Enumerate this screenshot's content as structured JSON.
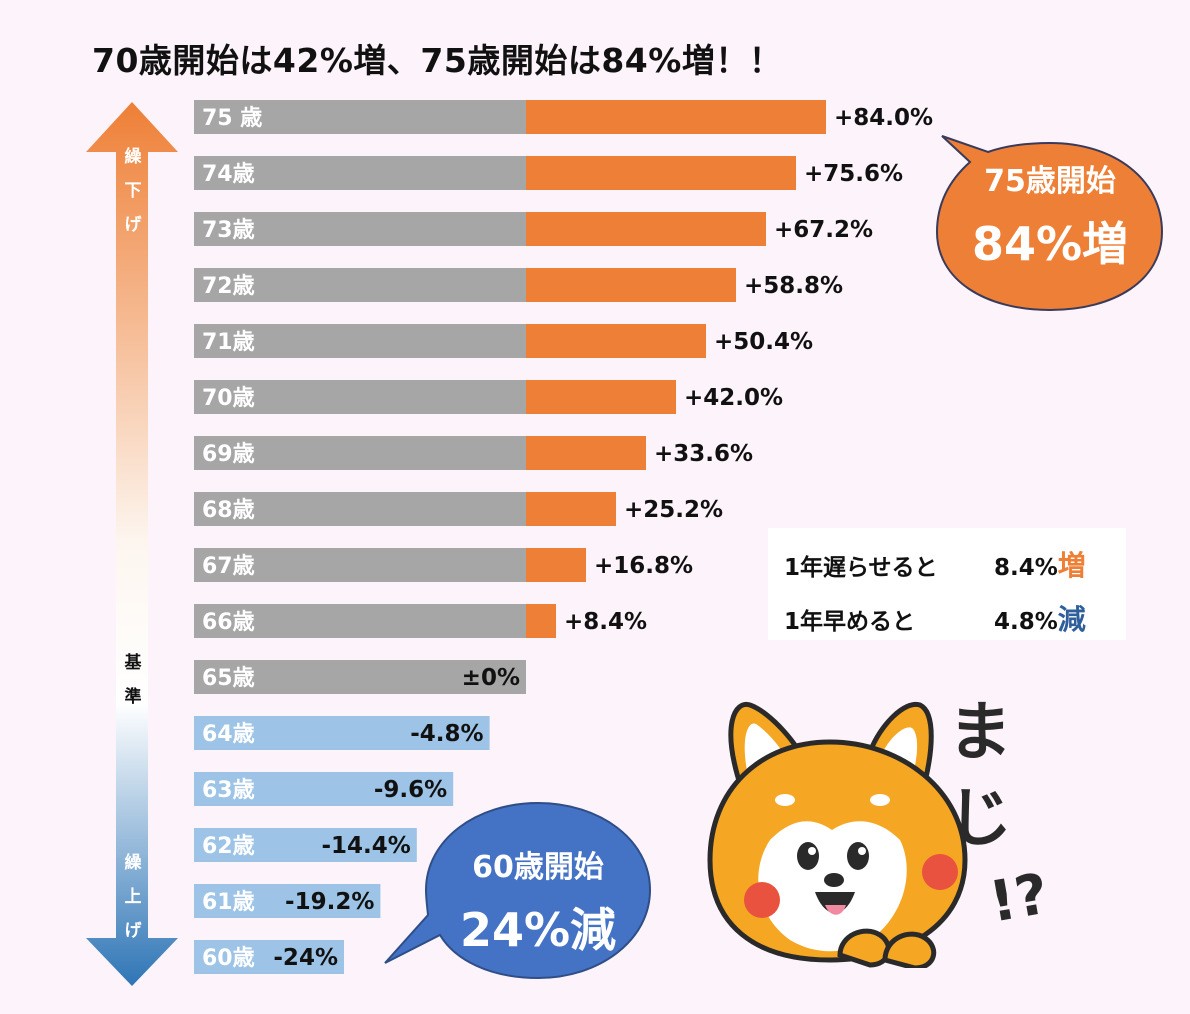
{
  "title": "70歳開始は42%増、75歳開始は84%増！！",
  "arrow": {
    "up_label": [
      "繰",
      "下",
      "げ"
    ],
    "base_label": [
      "基",
      "準"
    ],
    "down_label": [
      "繰",
      "上",
      "げ"
    ]
  },
  "colors": {
    "baseline_bar": "#a6a6a6",
    "increase_bar": "#ee7f36",
    "decrease_bar": "#9dc3e6",
    "up_bubble": "#ee7f36",
    "down_bubble": "#4472c4",
    "background": "#fdf3fa"
  },
  "bubble_up": {
    "line1": "75歳開始",
    "line2": "84%増"
  },
  "bubble_down": {
    "line1": "60歳開始",
    "line2": "24%減"
  },
  "legend": {
    "row1_text": "1年遅らせると",
    "row1_value": "8.4%",
    "row1_word": "増",
    "row2_text": "1年早めると",
    "row2_value": "4.8%",
    "row2_word": "減"
  },
  "dog": {
    "exclaim": "まじ",
    "mark": "!?"
  },
  "chart_data": {
    "type": "bar",
    "orientation": "horizontal",
    "title": "70歳開始は42%増、75歳開始は84%増！！",
    "xlim": [
      -24,
      84
    ],
    "categories": [
      "75 歳",
      "74歳",
      "73歳",
      "72歳",
      "71歳",
      "70歳",
      "69歳",
      "68歳",
      "67歳",
      "66歳",
      "65歳",
      "64歳",
      "63歳",
      "62歳",
      "61歳",
      "60歳"
    ],
    "values": [
      84.0,
      75.6,
      67.2,
      58.8,
      50.4,
      42.0,
      33.6,
      25.2,
      16.8,
      8.4,
      0,
      -4.8,
      -9.6,
      -14.4,
      -19.2,
      -24
    ],
    "value_labels": [
      "+84.0%",
      "+75.6%",
      "+67.2%",
      "+58.8%",
      "+50.4%",
      "+42.0%",
      "+33.6%",
      "+25.2%",
      "+16.8%",
      "+8.4%",
      "±0%",
      "-4.8%",
      "-9.6%",
      "-14.4%",
      "-19.2%",
      "-24%"
    ]
  }
}
